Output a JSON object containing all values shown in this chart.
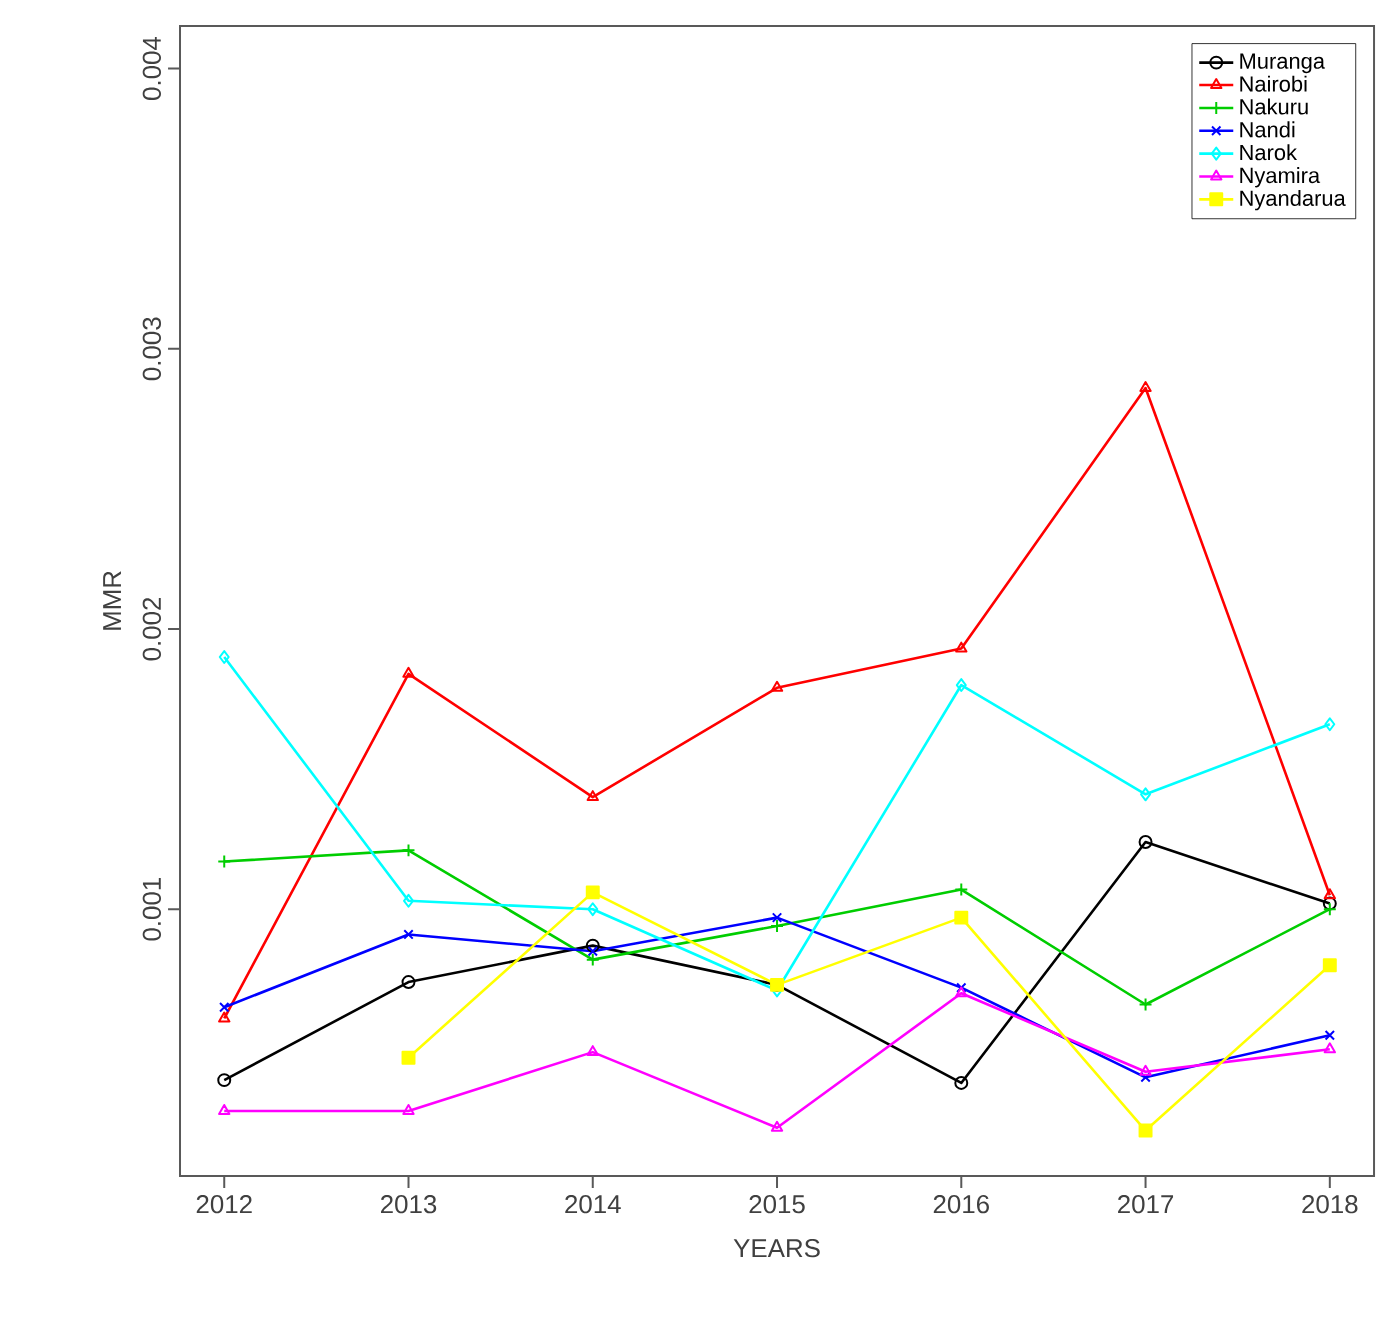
{
  "chart_data": {
    "type": "line",
    "xlabel": "YEARS",
    "ylabel": "MMR",
    "x": [
      2012,
      2013,
      2014,
      2015,
      2016,
      2017,
      2018
    ],
    "xlim": [
      2011.76,
      2018.24
    ],
    "xticks": [
      2012,
      2013,
      2014,
      2015,
      2016,
      2017,
      2018
    ],
    "ylim": [
      4.8e-05,
      0.004152
    ],
    "yticks": [
      0.001,
      0.002,
      0.003,
      0.004
    ],
    "legend": "top right",
    "series": [
      {
        "name": "Muranga",
        "color": "#000000",
        "marker": "circle",
        "values": [
          0.00039,
          0.00074,
          0.00087,
          0.00073,
          0.00038,
          0.00124,
          0.00102
        ]
      },
      {
        "name": "Nairobi",
        "color": "#ff0000",
        "marker": "triangle",
        "values": [
          0.00061,
          0.00184,
          0.0014,
          0.00179,
          0.00193,
          0.00286,
          0.00105
        ]
      },
      {
        "name": "Nakuru",
        "color": "#00cd00",
        "marker": "plus",
        "values": [
          0.00117,
          0.00121,
          0.00082,
          0.00094,
          0.00107,
          0.00066,
          0.001
        ]
      },
      {
        "name": "Nandi",
        "color": "#0000ff",
        "marker": "cross",
        "values": [
          0.00065,
          0.00091,
          0.00085,
          0.00097,
          0.00072,
          0.0004,
          0.00055
        ]
      },
      {
        "name": "Narok",
        "color": "#00ffff",
        "marker": "diamond",
        "values": [
          0.0019,
          0.00103,
          0.001,
          0.00071,
          0.0018,
          0.00141,
          0.00166
        ]
      },
      {
        "name": "Nyamira",
        "color": "#ff00ff",
        "marker": "triangle-down",
        "values": [
          0.00028,
          0.00028,
          0.00049,
          0.00022,
          0.0007,
          0.00042,
          0.0005
        ]
      },
      {
        "name": "Nyandarua",
        "color": "#ffff00",
        "marker": "square",
        "values": [
          null,
          0.00047,
          0.00106,
          0.00073,
          0.00097,
          0.00021,
          0.0008
        ]
      }
    ]
  }
}
